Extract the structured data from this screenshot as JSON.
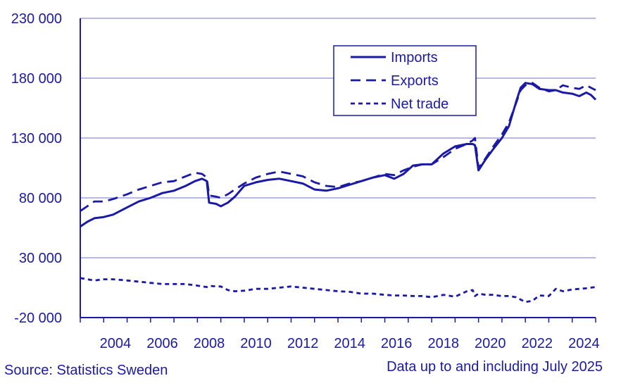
{
  "chart_data": {
    "type": "line",
    "title": "",
    "xlabel": "",
    "ylabel": "",
    "ylim": [
      -20000,
      230000
    ],
    "xlim": [
      2003.0,
      2025.0
    ],
    "y_ticks": [
      {
        "value": -20000,
        "label": "-20 000"
      },
      {
        "value": 30000,
        "label": "30 000"
      },
      {
        "value": 80000,
        "label": "80 000"
      },
      {
        "value": 130000,
        "label": "130 000"
      },
      {
        "value": 180000,
        "label": "180 000"
      },
      {
        "value": 230000,
        "label": "230 000"
      }
    ],
    "x_ticks": [
      {
        "value": 2004,
        "label": "2004"
      },
      {
        "value": 2006,
        "label": "2006"
      },
      {
        "value": 2008,
        "label": "2008"
      },
      {
        "value": 2010,
        "label": "2010"
      },
      {
        "value": 2012,
        "label": "2012"
      },
      {
        "value": 2014,
        "label": "2014"
      },
      {
        "value": 2016,
        "label": "2016"
      },
      {
        "value": 2018,
        "label": "2018"
      },
      {
        "value": 2020,
        "label": "2020"
      },
      {
        "value": 2022,
        "label": "2022"
      },
      {
        "value": 2024,
        "label": "2024"
      }
    ],
    "grid": true,
    "legend_position": "top-right",
    "series": [
      {
        "name": "Imports",
        "style": "solid",
        "x": [
          2003.0,
          2003.3,
          2003.6,
          2004.0,
          2004.4,
          2005.0,
          2005.5,
          2006.0,
          2006.5,
          2007.0,
          2007.5,
          2007.9,
          2008.2,
          2008.4,
          2008.5,
          2008.8,
          2009.0,
          2009.3,
          2009.6,
          2010.0,
          2010.5,
          2011.0,
          2011.5,
          2012.0,
          2012.5,
          2013.0,
          2013.5,
          2014.0,
          2014.5,
          2015.0,
          2015.5,
          2016.0,
          2016.4,
          2016.8,
          2017.2,
          2017.6,
          2018.0,
          2018.5,
          2019.0,
          2019.5,
          2019.75,
          2019.85,
          2020.0,
          2020.3,
          2020.6,
          2021.0,
          2021.3,
          2021.6,
          2021.8,
          2022.0,
          2022.3,
          2022.6,
          2023.0,
          2023.3,
          2023.6,
          2024.0,
          2024.3,
          2024.6,
          2024.8,
          2025.0
        ],
        "values": [
          56000,
          60000,
          63000,
          64000,
          66000,
          72000,
          77000,
          80000,
          84000,
          86000,
          90000,
          94000,
          96000,
          94000,
          76000,
          75000,
          73000,
          76000,
          81000,
          90000,
          93000,
          95000,
          96000,
          94000,
          92000,
          87000,
          86000,
          88000,
          91000,
          94000,
          97000,
          99000,
          96000,
          100000,
          107000,
          108000,
          108000,
          117000,
          123000,
          125000,
          125000,
          124000,
          103000,
          112000,
          120000,
          130000,
          140000,
          160000,
          172000,
          176000,
          175000,
          171000,
          170000,
          170000,
          168000,
          167000,
          165000,
          168000,
          166000,
          162000
        ]
      },
      {
        "name": "Exports",
        "style": "dashed",
        "x": [
          2003.0,
          2003.3,
          2003.6,
          2004.0,
          2004.4,
          2005.0,
          2005.5,
          2006.0,
          2006.5,
          2007.0,
          2007.5,
          2007.9,
          2008.2,
          2008.4,
          2008.5,
          2008.8,
          2009.0,
          2009.3,
          2009.6,
          2010.0,
          2010.5,
          2011.0,
          2011.5,
          2012.0,
          2012.5,
          2013.0,
          2013.5,
          2014.0,
          2014.5,
          2015.0,
          2015.5,
          2016.0,
          2016.4,
          2016.8,
          2017.2,
          2017.6,
          2018.0,
          2018.5,
          2019.0,
          2019.5,
          2019.75,
          2019.85,
          2020.0,
          2020.3,
          2020.6,
          2021.0,
          2021.3,
          2021.6,
          2021.8,
          2022.0,
          2022.3,
          2022.6,
          2023.0,
          2023.3,
          2023.6,
          2024.0,
          2024.3,
          2024.6,
          2024.8,
          2025.0
        ],
        "values": [
          69000,
          73000,
          77000,
          77000,
          79000,
          83000,
          87000,
          90000,
          93000,
          94000,
          98000,
          101000,
          100000,
          97000,
          82000,
          81000,
          80000,
          83000,
          87000,
          92000,
          97000,
          100000,
          102000,
          100000,
          98000,
          93000,
          90000,
          89000,
          92000,
          94000,
          97000,
          100000,
          99000,
          103000,
          106000,
          108000,
          108000,
          114000,
          121000,
          125000,
          128000,
          130000,
          105000,
          113000,
          122000,
          133000,
          143000,
          159000,
          170000,
          174000,
          176000,
          172000,
          169000,
          170000,
          174000,
          172000,
          171000,
          174000,
          172000,
          170000
        ]
      },
      {
        "name": "Net trade",
        "style": "dotted",
        "x": [
          2003.0,
          2003.3,
          2003.6,
          2004.0,
          2004.4,
          2005.0,
          2005.5,
          2006.0,
          2006.5,
          2007.0,
          2007.5,
          2007.9,
          2008.2,
          2008.4,
          2008.5,
          2008.8,
          2009.0,
          2009.3,
          2009.6,
          2010.0,
          2010.5,
          2011.0,
          2011.5,
          2012.0,
          2012.5,
          2013.0,
          2013.5,
          2014.0,
          2014.5,
          2015.0,
          2015.5,
          2016.0,
          2016.4,
          2016.8,
          2017.2,
          2017.6,
          2018.0,
          2018.5,
          2019.0,
          2019.5,
          2019.75,
          2019.85,
          2020.0,
          2020.3,
          2020.6,
          2021.0,
          2021.3,
          2021.6,
          2021.8,
          2022.0,
          2022.3,
          2022.6,
          2023.0,
          2023.3,
          2023.6,
          2024.0,
          2024.3,
          2024.6,
          2024.8,
          2025.0
        ],
        "values": [
          13000,
          12000,
          11000,
          12000,
          12000,
          11000,
          10000,
          9000,
          8000,
          8000,
          8000,
          7000,
          6000,
          5500,
          6500,
          6000,
          6000,
          3000,
          2000,
          2500,
          4000,
          4000,
          5000,
          6000,
          5000,
          4000,
          3000,
          2000,
          1500,
          0,
          0,
          -1000,
          -1500,
          -1500,
          -2000,
          -2000,
          -3000,
          -1000,
          -2500,
          2000,
          3000,
          -2000,
          0,
          -1000,
          -1000,
          -2000,
          -2000,
          -3000,
          -5000,
          -7000,
          -6000,
          -1500,
          -2000,
          4000,
          2000,
          3500,
          4000,
          4500,
          5000,
          5500
        ]
      }
    ]
  },
  "footer": {
    "source": "Source: Statistics Sweden",
    "note": "Data up to and including July 2025"
  },
  "colors": {
    "line": "#1a1aa6",
    "grid": "#8c8ce0",
    "axis": "#1a1aa6",
    "text": "#1a1aa6"
  }
}
